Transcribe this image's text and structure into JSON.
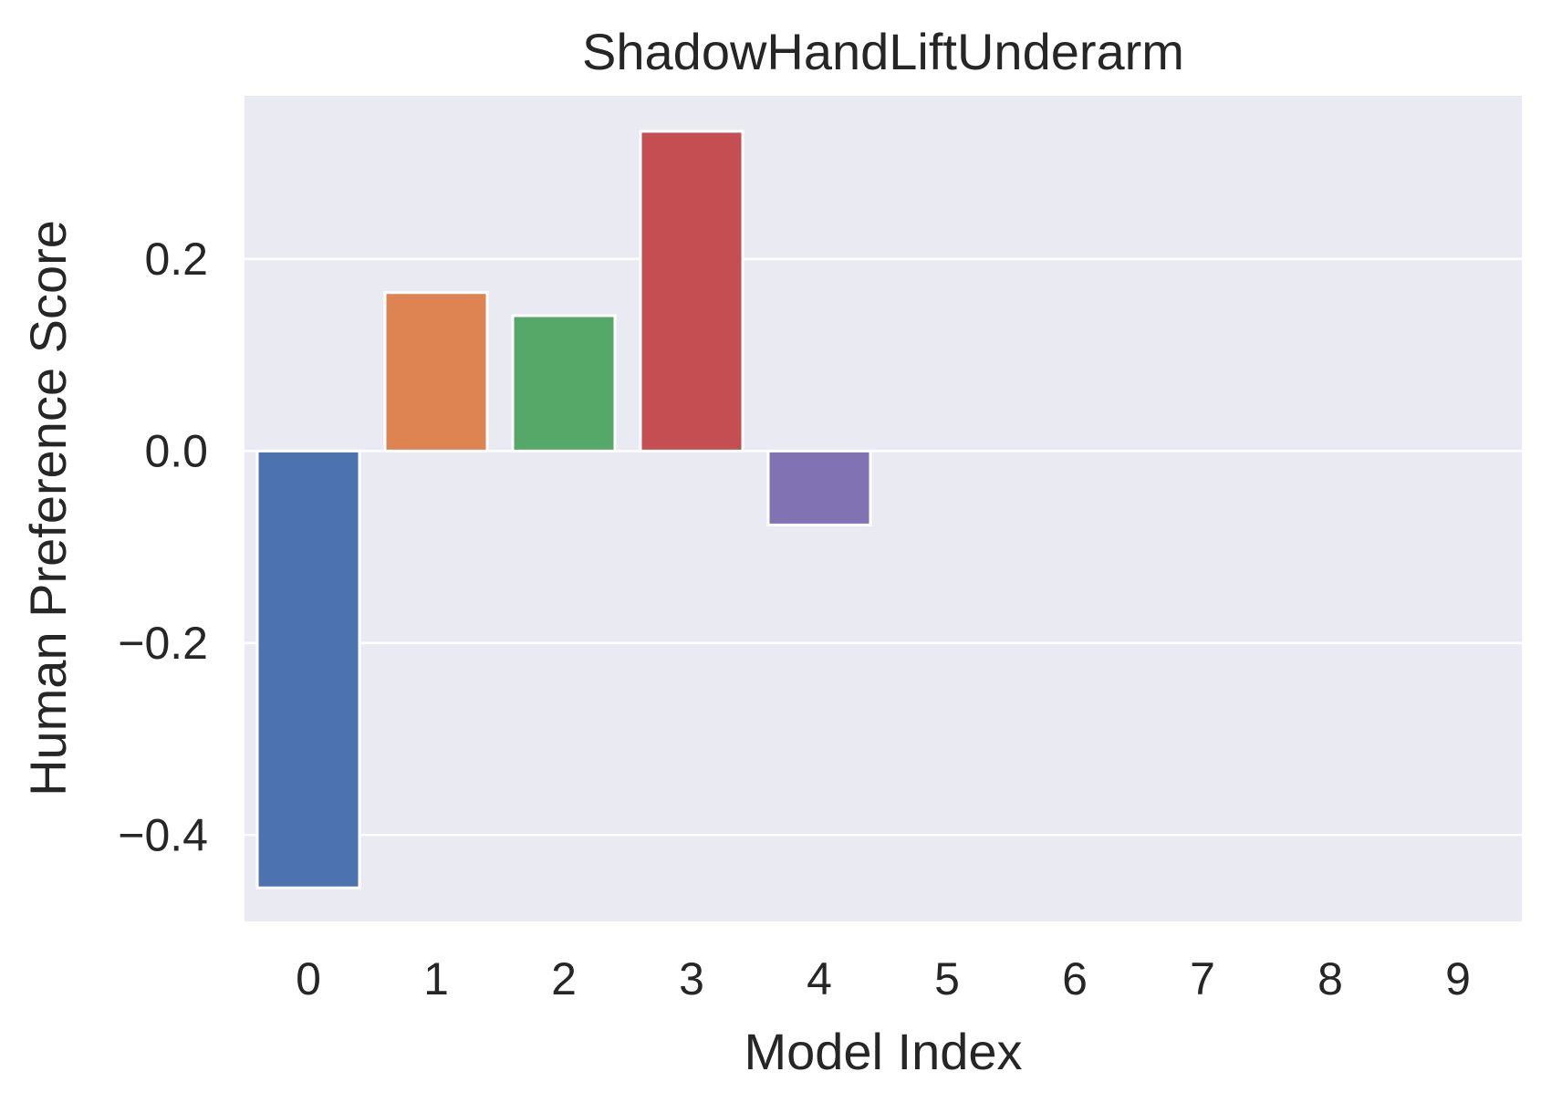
{
  "chart_data": {
    "type": "bar",
    "title": "ShadowHandLiftUnderarm",
    "xlabel": "Model Index",
    "ylabel": "Human Preference Score",
    "categories": [
      "0",
      "1",
      "2",
      "3",
      "4",
      "5",
      "6",
      "7",
      "8",
      "9"
    ],
    "values": [
      -0.455,
      0.165,
      0.141,
      0.333,
      -0.077,
      0,
      0,
      0,
      0,
      0
    ],
    "ylim": [
      -0.49,
      0.37
    ],
    "yticks": [
      -0.4,
      -0.2,
      0.0,
      0.2
    ],
    "ytick_labels": [
      "−0.4",
      "−0.2",
      "0.0",
      "0.2"
    ],
    "grid": true,
    "grid_axis": "y",
    "background_color": "#eaeaf2",
    "colors": [
      "#4c72b0",
      "#dd8452",
      "#55a868",
      "#c44e52",
      "#8172b3",
      "#937860",
      "#da8bc3",
      "#8c8c8c",
      "#ccb974",
      "#64b5cd"
    ]
  }
}
